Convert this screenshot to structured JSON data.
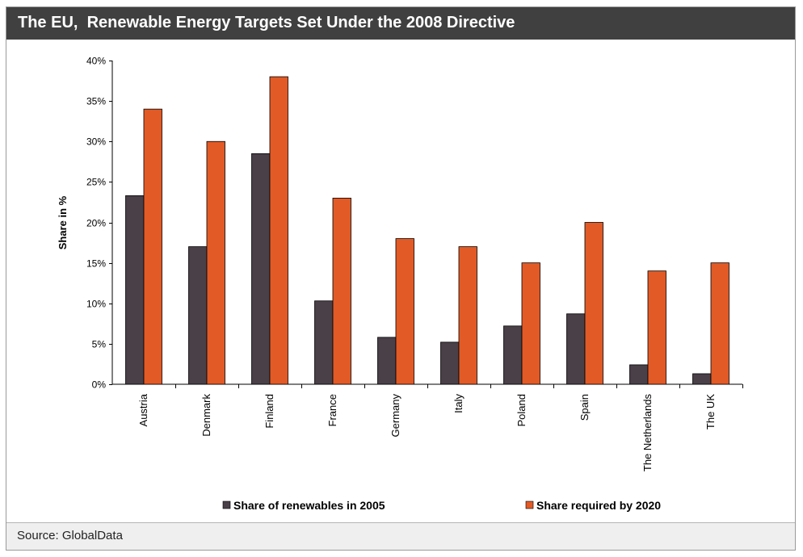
{
  "header": {
    "title": "The EU,  Renewable Energy Targets Set Under the 2008 Directive"
  },
  "footer": {
    "source": "Source: GlobalData"
  },
  "chart_data": {
    "type": "bar",
    "title": "The EU,  Renewable Energy Targets Set Under the 2008 Directive",
    "xlabel": "",
    "ylabel": "Share in %",
    "ylim": [
      0,
      40
    ],
    "yticks": [
      0,
      5,
      10,
      15,
      20,
      25,
      30,
      35,
      40
    ],
    "ytick_labels": [
      "0%",
      "5%",
      "10%",
      "15%",
      "20%",
      "25%",
      "30%",
      "35%",
      "40%"
    ],
    "categories": [
      "Austria",
      "Denmark",
      "Finland",
      "France",
      "Germany",
      "Italy",
      "Poland",
      "Spain",
      "The Netherlands",
      "The UK"
    ],
    "series": [
      {
        "name": "Share of renewables in 2005",
        "color": "#4a4048",
        "values": [
          23.3,
          17.0,
          28.5,
          10.3,
          5.8,
          5.2,
          7.2,
          8.7,
          2.4,
          1.3
        ]
      },
      {
        "name": "Share required by 2020",
        "color": "#e25a26",
        "values": [
          34,
          30,
          38,
          23,
          18,
          17,
          15,
          20,
          14,
          15
        ]
      }
    ],
    "grid": false,
    "legend": "bottom"
  }
}
